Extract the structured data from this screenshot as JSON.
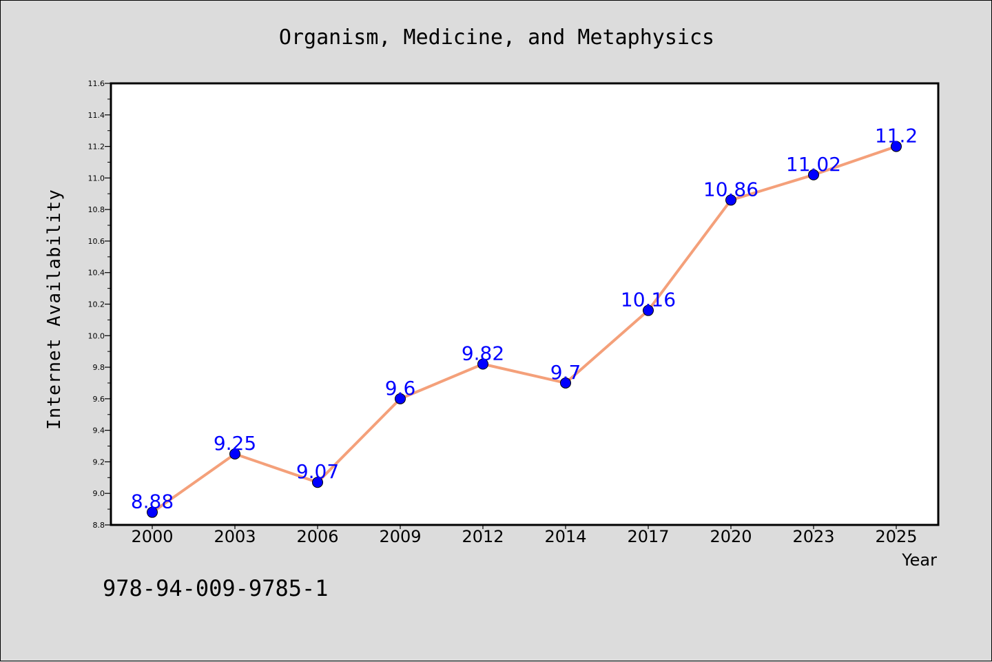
{
  "chart_data": {
    "type": "line",
    "title": "Organism, Medicine, and Metaphysics",
    "xlabel": "Year",
    "ylabel": "Internet Availability",
    "categories": [
      "2000",
      "2003",
      "2006",
      "2009",
      "2012",
      "2014",
      "2017",
      "2020",
      "2023",
      "2025"
    ],
    "series": [
      {
        "values": [
          8.88,
          9.25,
          9.07,
          9.6,
          9.82,
          9.7,
          10.16,
          10.86,
          11.02,
          11.2
        ],
        "labels": [
          "8.88",
          "9.25",
          "9.07",
          "9.6",
          "9.82",
          "9.7",
          "10.16",
          "10.86",
          "11.02",
          "11.2"
        ],
        "line_color": "#f4a07a",
        "marker_color": "#0000ff"
      }
    ],
    "ylim": [
      8.8,
      11.6
    ],
    "yticks": [
      "8.8",
      "9.0",
      "9.2",
      "9.4",
      "9.6",
      "9.8",
      "10.0",
      "10.2",
      "10.4",
      "10.6",
      "10.8",
      "11.0",
      "11.2",
      "11.4",
      "11.6"
    ],
    "grid": false,
    "legend": "none"
  },
  "annotation": "978-94-009-9785-1",
  "colors": {
    "background": "#dcdcdc",
    "plot_area": "#ffffff",
    "line": "#f4a07a",
    "marker": "#0000ff",
    "data_label": "#0000ff"
  }
}
